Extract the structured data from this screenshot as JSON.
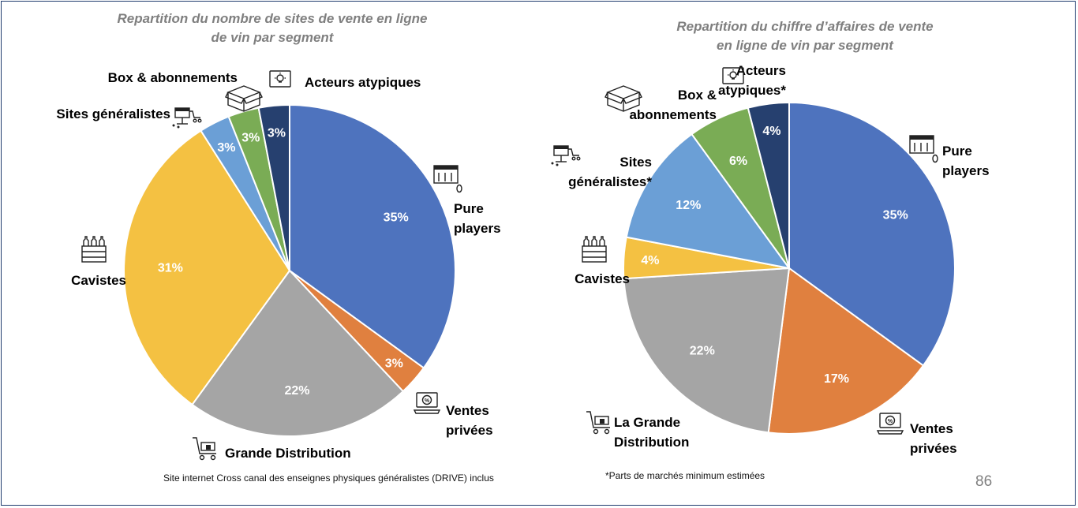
{
  "page": {
    "number": "86"
  },
  "notes": {
    "left": "Site internet Cross canal des enseignes physiques généralistes (DRIVE) inclus",
    "right": "*Parts de marchés minimum estimées"
  },
  "chart_data": [
    {
      "type": "pie",
      "title": "Repartition du nombre de sites de vente en ligne de vin par segment",
      "title_lines": [
        "Repartition du nombre de sites de vente en ligne",
        "de vin par segment"
      ],
      "slices": [
        {
          "label": "Pure players",
          "label_lines": [
            "Pure",
            "players"
          ],
          "value": 35,
          "pct_label": "35%",
          "color": "#4e73be",
          "icon": "online-store-icon"
        },
        {
          "label": "Ventes privées",
          "label_lines": [
            "Ventes",
            "privées"
          ],
          "value": 3,
          "pct_label": "3%",
          "color": "#e0803f",
          "icon": "discount-laptop-icon"
        },
        {
          "label": "Grande Distribution",
          "label_lines": [
            "Grande Distribution"
          ],
          "value": 22,
          "pct_label": "22%",
          "color": "#a5a5a5",
          "icon": "shopping-cart-icon"
        },
        {
          "label": "Cavistes",
          "label_lines": [
            "Cavistes"
          ],
          "value": 31,
          "pct_label": "31%",
          "color": "#f4c142",
          "icon": "wine-crate-icon"
        },
        {
          "label": "Sites généralistes",
          "label_lines": [
            "Sites généralistes"
          ],
          "value": 3,
          "pct_label": "3%",
          "color": "#6b9fd6",
          "icon": "marketplace-icon"
        },
        {
          "label": "Box & abonnements",
          "label_lines": [
            "Box & abonnements"
          ],
          "value": 3,
          "pct_label": "3%",
          "color": "#7aac55",
          "icon": "box-icon"
        },
        {
          "label": "Acteurs atypiques",
          "label_lines": [
            "Acteurs atypiques"
          ],
          "value": 3,
          "pct_label": "3%",
          "color": "#26406f",
          "icon": "lightbulb-icon"
        }
      ]
    },
    {
      "type": "pie",
      "title": "Repartition du chiffre d'affaires de vente en ligne de vin par segment",
      "title_lines": [
        "Repartition du chiffre d’affaires de vente",
        "en ligne de vin par segment"
      ],
      "slices": [
        {
          "label": "Pure players",
          "label_lines": [
            "Pure",
            "players"
          ],
          "value": 35,
          "pct_label": "35%",
          "color": "#4e73be",
          "icon": "online-store-icon"
        },
        {
          "label": "Ventes privées",
          "label_lines": [
            "Ventes",
            "privées"
          ],
          "value": 17,
          "pct_label": "17%",
          "color": "#e0803f",
          "icon": "discount-laptop-icon"
        },
        {
          "label": "La Grande Distribution",
          "label_lines": [
            "La Grande",
            "Distribution"
          ],
          "value": 22,
          "pct_label": "22%",
          "color": "#a5a5a5",
          "icon": "shopping-cart-icon"
        },
        {
          "label": "Cavistes",
          "label_lines": [
            "Cavistes"
          ],
          "value": 4,
          "pct_label": "4%",
          "color": "#f4c142",
          "icon": "wine-crate-icon"
        },
        {
          "label": "Sites généralistes*",
          "label_lines": [
            "Sites",
            "généralistes*"
          ],
          "value": 12,
          "pct_label": "12%",
          "color": "#6b9fd6",
          "icon": "marketplace-icon"
        },
        {
          "label": "Box & abonnements",
          "label_lines": [
            "Box &",
            "abonnements"
          ],
          "value": 6,
          "pct_label": "6%",
          "color": "#7aac55",
          "icon": "box-icon"
        },
        {
          "label": "Acteurs atypiques*",
          "label_lines": [
            "Acteurs",
            "atypiques*"
          ],
          "value": 4,
          "pct_label": "4%",
          "color": "#26406f",
          "icon": "lightbulb-icon"
        }
      ]
    }
  ]
}
